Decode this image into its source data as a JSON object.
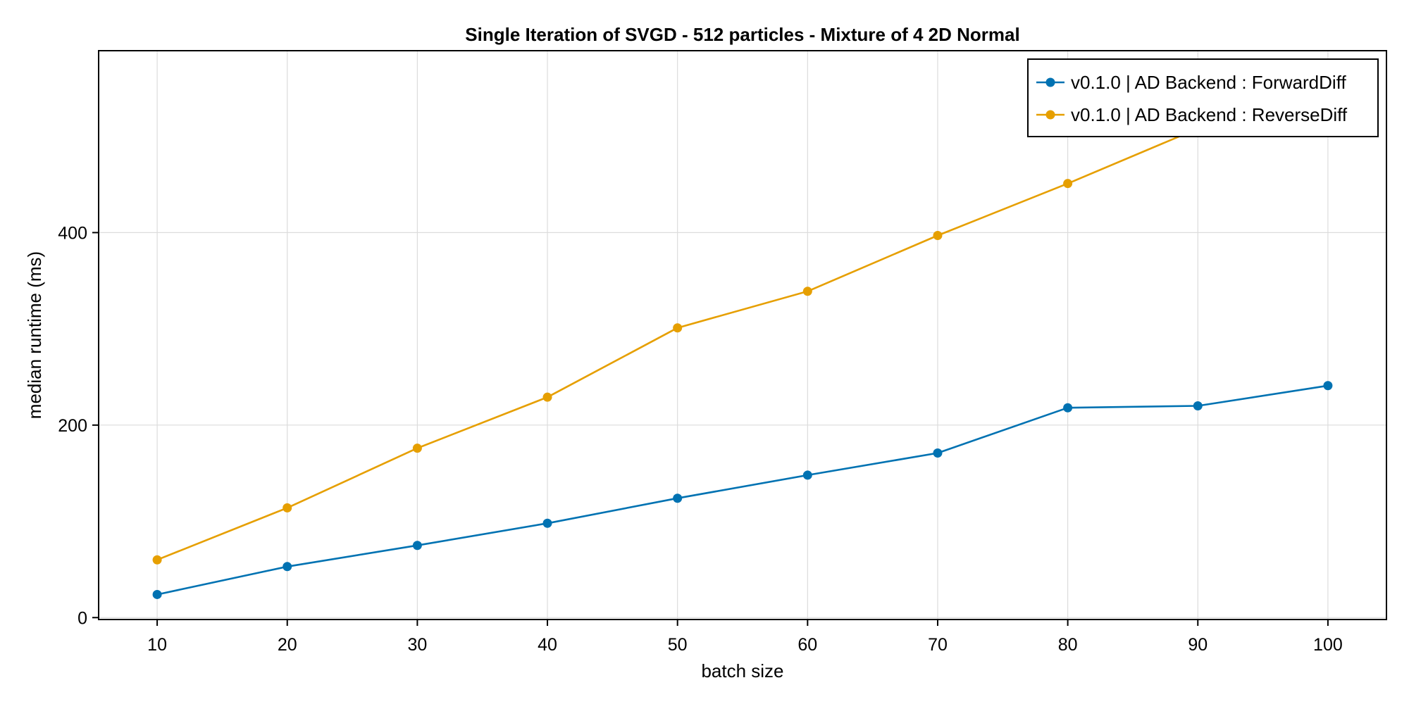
{
  "chart_data": {
    "type": "line",
    "title": "Single Iteration of SVGD - 512 particles - Mixture of 4 2D Normal",
    "xlabel": "batch size",
    "ylabel": "median runtime (ms)",
    "x": [
      10,
      20,
      30,
      40,
      50,
      60,
      70,
      80,
      90,
      100
    ],
    "xlim": [
      5.5,
      104.5
    ],
    "ylim": [
      -2,
      589
    ],
    "xticks": [
      10,
      20,
      30,
      40,
      50,
      60,
      70,
      80,
      90,
      100
    ],
    "yticks": [
      0,
      200,
      400
    ],
    "grid": true,
    "legend_position": "top-right",
    "series": [
      {
        "name": "v0.1.0 | AD Backend : ForwardDiff",
        "color": "#0072b2",
        "values": [
          24,
          53,
          75,
          98,
          124,
          148,
          171,
          218,
          220,
          241
        ]
      },
      {
        "name": "v0.1.0 | AD Backend : ReverseDiff",
        "color": "#e69f00",
        "values": [
          60,
          114,
          176,
          229,
          301,
          339,
          397,
          451,
          508,
          563
        ]
      }
    ]
  }
}
